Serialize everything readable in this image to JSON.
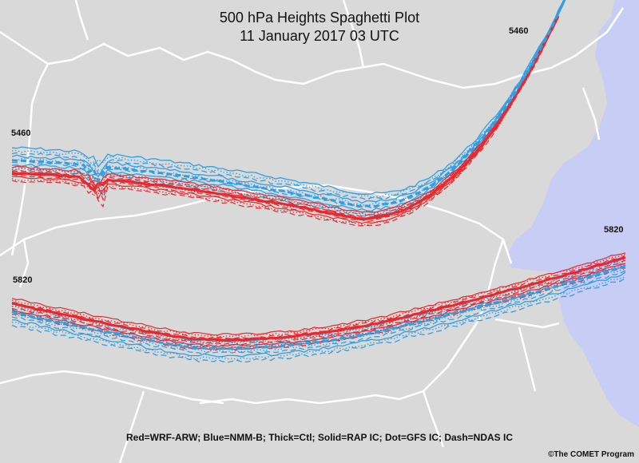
{
  "title": {
    "line1": "500 hPa Heights Spaghetti Plot",
    "line2": "11 January 2017 03 UTC"
  },
  "contour_labels": {
    "upper_left": "5460",
    "upper_right": "5460",
    "lower_left": "5820",
    "lower_right": "5820"
  },
  "legend": "Red=WRF-ARW; Blue=NMM-B; Thick=Ctl; Solid=RAP IC; Dot=GFS IC; Dash=NDAS IC",
  "credit": "©The COMET Program",
  "colors": {
    "land": "#d9d9d9",
    "water": "#c8cdf5",
    "borders": "#ffffff",
    "wrf_arw": "#e8282c",
    "nmm_b": "#2e9fe6"
  },
  "contour_values_hpa_m": [
    5460,
    5820
  ],
  "member_styles": [
    "Thick=Ctl",
    "Solid=RAP IC",
    "Dot=GFS IC",
    "Dash=NDAS IC"
  ]
}
